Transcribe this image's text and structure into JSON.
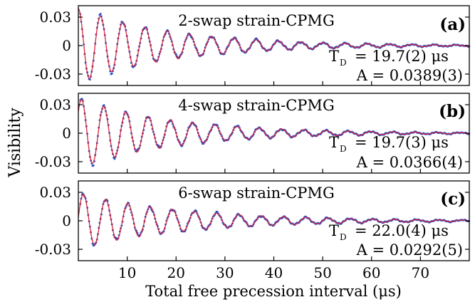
{
  "chart_data": [
    {
      "type": "scatter",
      "panel_label": "(a)",
      "title": "2-swap strain-CPMG",
      "annotations": [
        "T",
        "D",
        "= 19.7(2) μs",
        "A = 0.0389(3)"
      ],
      "xlim": [
        0,
        80
      ],
      "ylim": [
        -0.042,
        0.042
      ],
      "yticks": [
        0.03,
        0,
        -0.03
      ],
      "ytick_labels": [
        "0.03",
        "0",
        "-0.03"
      ],
      "fit": {
        "T_D_us": 19.7,
        "A": 0.0389,
        "period_us": 4.55,
        "phase_rad": 0.0
      },
      "series": [
        {
          "marker": "dots",
          "color": "#2a4fc4"
        },
        {
          "marker": "line",
          "color": "#d8263a"
        }
      ]
    },
    {
      "type": "scatter",
      "panel_label": "(b)",
      "title": "4-swap strain-CPMG",
      "annotations": [
        "T",
        "D",
        "= 19.7(3) μs",
        "A = 0.0366(4)"
      ],
      "xlim": [
        0,
        80
      ],
      "ylim": [
        -0.042,
        0.042
      ],
      "yticks": [
        0.03,
        0,
        -0.03
      ],
      "ytick_labels": [
        "0.03",
        "0",
        "-0.03"
      ],
      "fit": {
        "T_D_us": 19.7,
        "A": 0.0366,
        "period_us": 4.55,
        "phase_rad": -0.9
      },
      "series": [
        {
          "marker": "dots",
          "color": "#2a4fc4"
        },
        {
          "marker": "line",
          "color": "#d8263a"
        }
      ]
    },
    {
      "type": "scatter",
      "panel_label": "(c)",
      "title": "6-swap strain-CPMG",
      "annotations": [
        "T",
        "D",
        "= 22.0(4) μs",
        "A = 0.0292(5)"
      ],
      "xlim": [
        0,
        80
      ],
      "ylim": [
        -0.042,
        0.042
      ],
      "yticks": [
        0.03,
        0,
        -0.03
      ],
      "ytick_labels": [
        "0.03",
        "0",
        "-0.03"
      ],
      "fit": {
        "T_D_us": 22.0,
        "A": 0.0292,
        "period_us": 4.55,
        "phase_rad": -1.45
      },
      "series": [
        {
          "marker": "dots",
          "color": "#2a4fc4"
        },
        {
          "marker": "line",
          "color": "#d8263a"
        }
      ]
    }
  ],
  "axes": {
    "ylabel": "Visibility",
    "xlabel": "Total free precession interval (μs)",
    "xticks": [
      10,
      20,
      30,
      40,
      50,
      60,
      70
    ],
    "xtick_labels": [
      "10",
      "20",
      "30",
      "40",
      "50",
      "60",
      "70"
    ]
  }
}
